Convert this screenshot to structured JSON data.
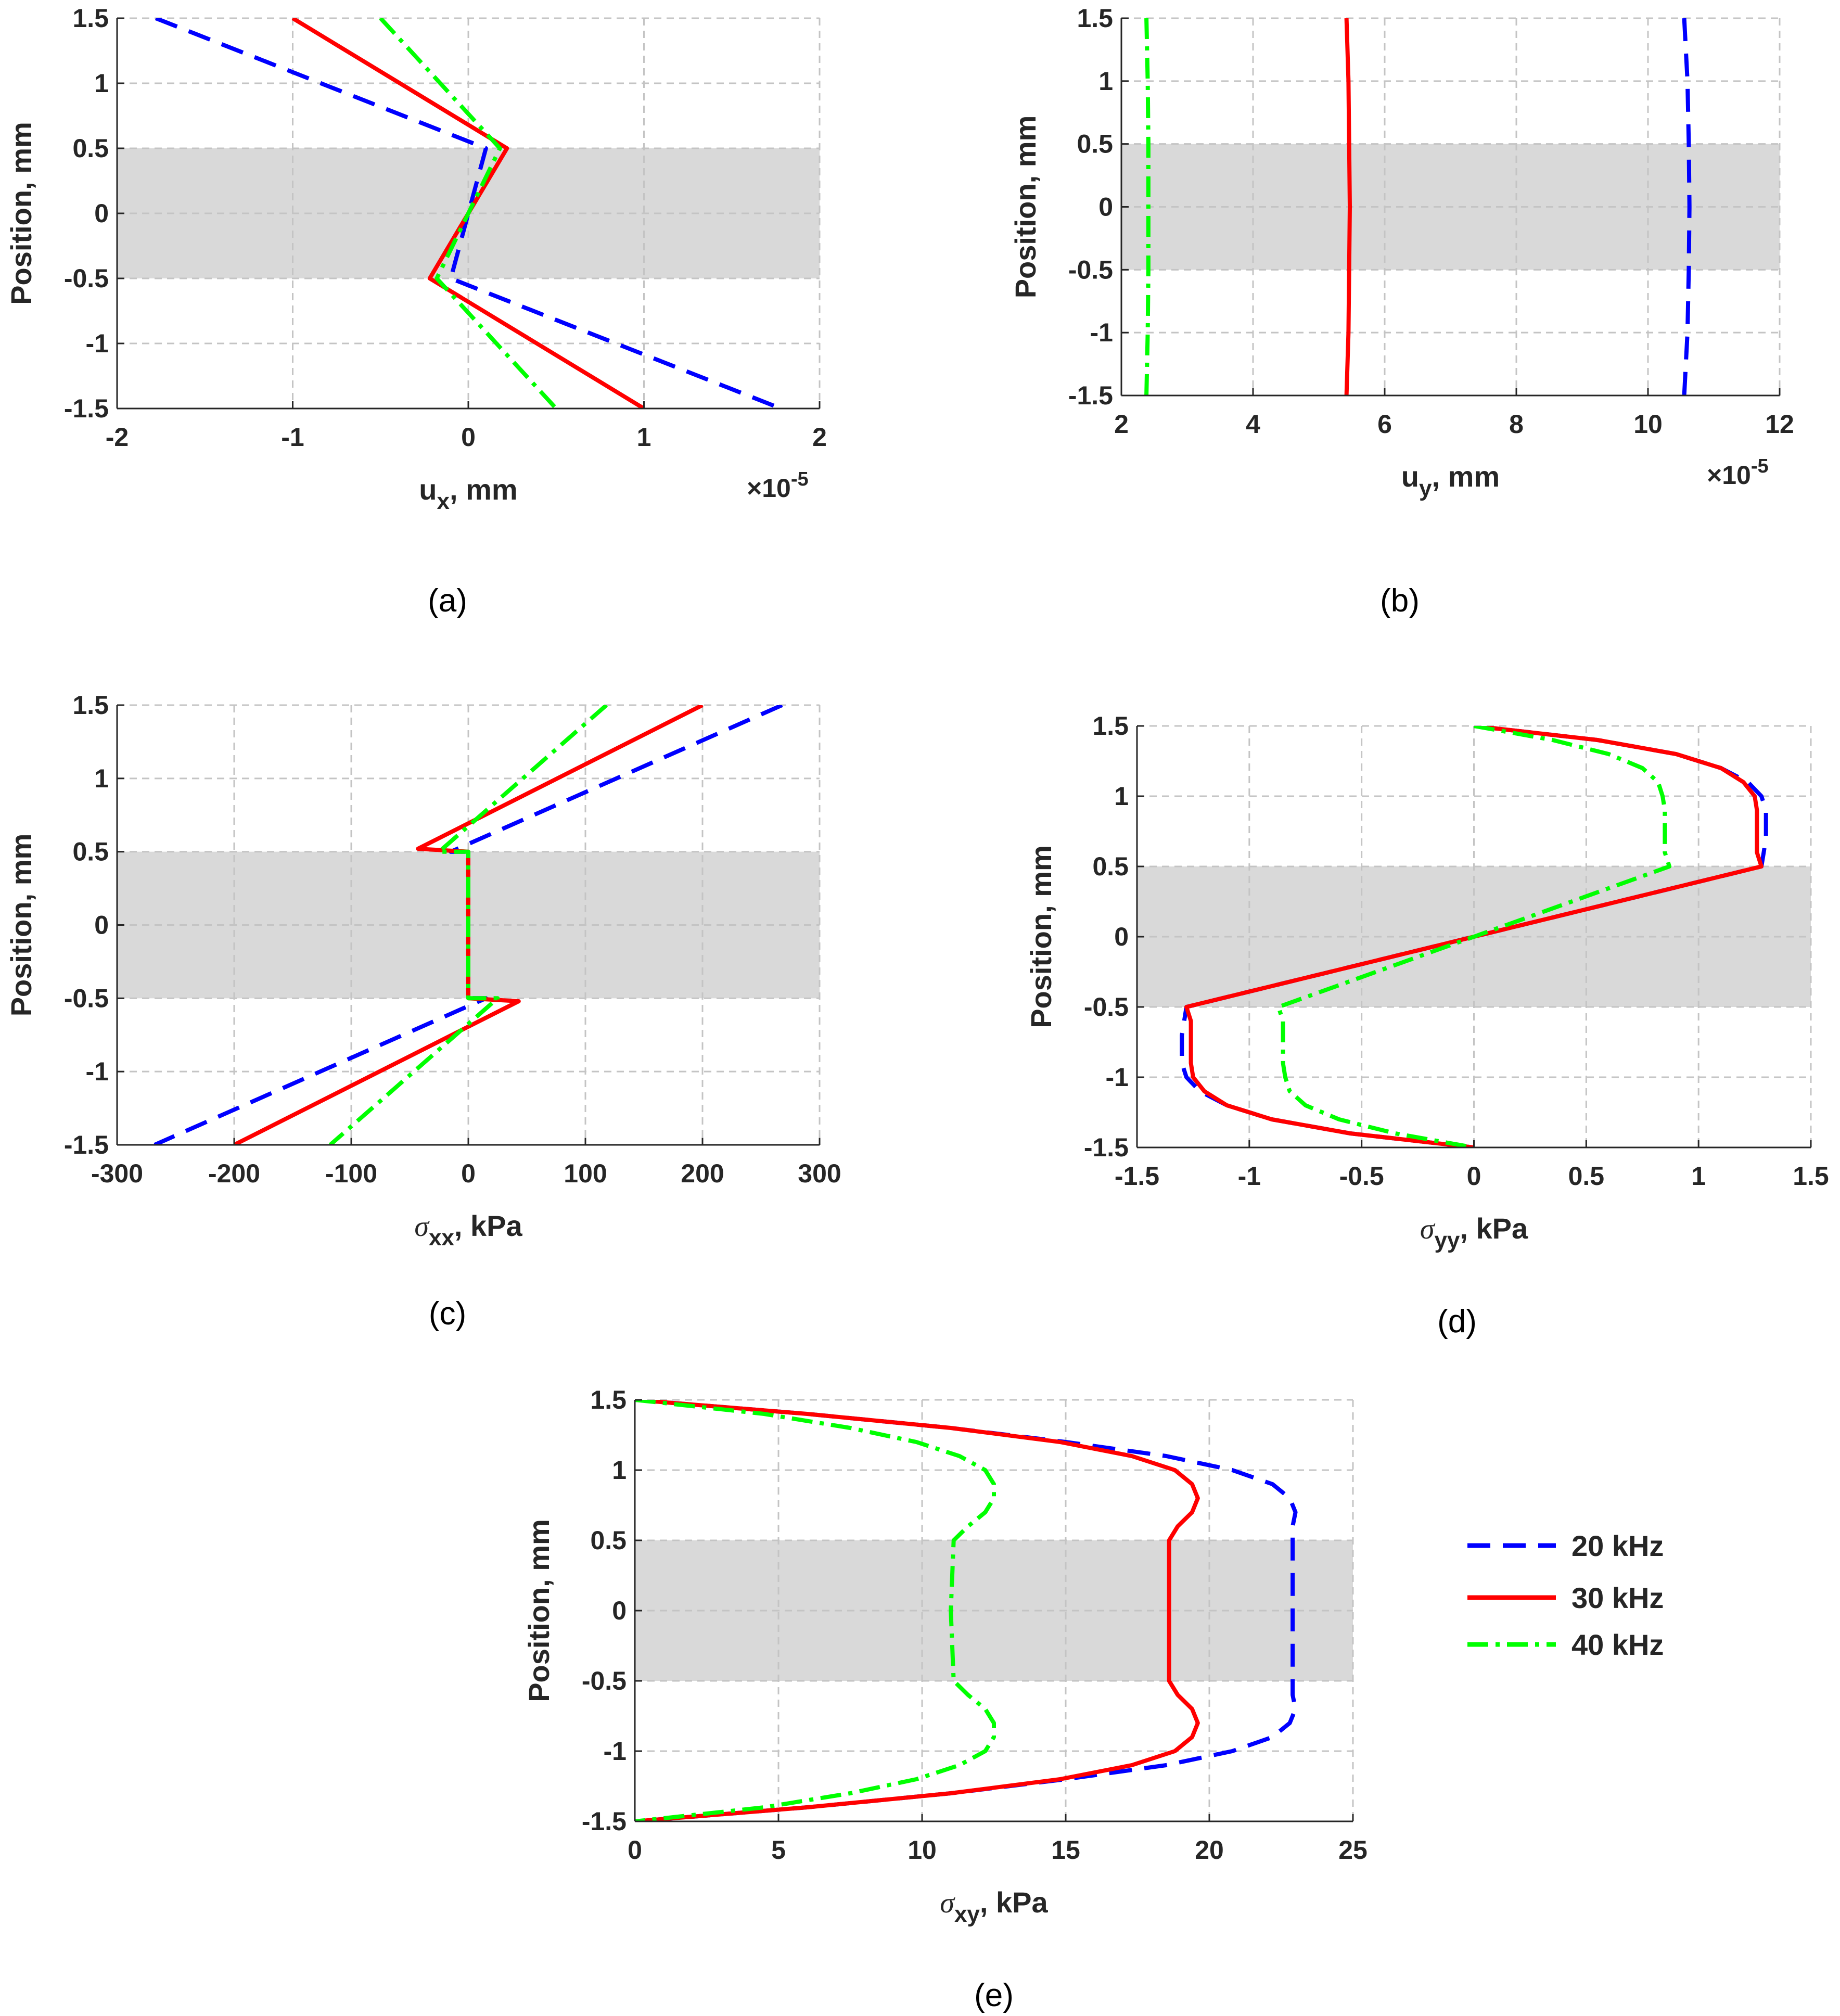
{
  "figure": {
    "legend": [
      {
        "label": "20 kHz",
        "color": "#0000ff",
        "style": "dashed"
      },
      {
        "label": "30 kHz",
        "color": "#ff0000",
        "style": "solid"
      },
      {
        "label": "40 kHz",
        "color": "#00ff00",
        "style": "dashdot"
      }
    ],
    "band_color": "#d9d9d9"
  },
  "chart_data": [
    {
      "id": "a",
      "caption": "(a)",
      "type": "line",
      "xlabel": "u",
      "xlabel_sub": "x",
      "xlabel_unit": ", mm",
      "xlabel_symbol": false,
      "ylabel": "Position, mm",
      "xlim": [
        -2,
        2
      ],
      "ylim": [
        -1.5,
        1.5
      ],
      "xticks": [
        "-2",
        "-1",
        "0",
        "1",
        "2"
      ],
      "yticks": [
        "-1.5",
        "-1",
        "-0.5",
        "0",
        "0.5",
        "1",
        "1.5"
      ],
      "exponent_base": "×10",
      "exponent_power": "-5",
      "band": [
        -0.5,
        0.5
      ],
      "series": [
        {
          "name": "20 kHz",
          "points": [
            [
              -1.78,
              1.5
            ],
            [
              0.1,
              0.5
            ],
            [
              0,
              0
            ],
            [
              -0.1,
              -0.5
            ],
            [
              1.78,
              -1.5
            ]
          ]
        },
        {
          "name": "30 kHz",
          "points": [
            [
              -1.0,
              1.5
            ],
            [
              0.22,
              0.5
            ],
            [
              0,
              0
            ],
            [
              -0.22,
              -0.5
            ],
            [
              1.0,
              -1.5
            ]
          ]
        },
        {
          "name": "40 kHz",
          "points": [
            [
              -0.5,
              1.5
            ],
            [
              0.18,
              0.5
            ],
            [
              0,
              0
            ],
            [
              -0.18,
              -0.5
            ],
            [
              0.5,
              -1.5
            ]
          ]
        }
      ]
    },
    {
      "id": "b",
      "caption": "(b)",
      "type": "line",
      "xlabel": "u",
      "xlabel_sub": "y",
      "xlabel_unit": ", mm",
      "xlabel_symbol": false,
      "ylabel": "Position, mm",
      "xlim": [
        2,
        12
      ],
      "ylim": [
        -1.5,
        1.5
      ],
      "xticks": [
        "2",
        "4",
        "6",
        "8",
        "10",
        "12"
      ],
      "yticks": [
        "-1.5",
        "-1",
        "-0.5",
        "0",
        "0.5",
        "1",
        "1.5"
      ],
      "exponent_base": "×10",
      "exponent_power": "-5",
      "band": [
        -0.5,
        0.5
      ],
      "series": [
        {
          "name": "20 kHz",
          "points": [
            [
              10.55,
              1.5
            ],
            [
              10.6,
              1.0
            ],
            [
              10.62,
              0.5
            ],
            [
              10.63,
              0
            ],
            [
              10.62,
              -0.5
            ],
            [
              10.6,
              -1.0
            ],
            [
              10.55,
              -1.5
            ]
          ]
        },
        {
          "name": "30 kHz",
          "points": [
            [
              5.42,
              1.5
            ],
            [
              5.45,
              1.0
            ],
            [
              5.46,
              0.5
            ],
            [
              5.47,
              0
            ],
            [
              5.46,
              -0.5
            ],
            [
              5.45,
              -1.0
            ],
            [
              5.42,
              -1.5
            ]
          ]
        },
        {
          "name": "40 kHz",
          "points": [
            [
              2.38,
              1.5
            ],
            [
              2.4,
              1.0
            ],
            [
              2.41,
              0.5
            ],
            [
              2.41,
              0
            ],
            [
              2.41,
              -0.5
            ],
            [
              2.4,
              -1.0
            ],
            [
              2.38,
              -1.5
            ]
          ]
        }
      ]
    },
    {
      "id": "c",
      "caption": "(c)",
      "type": "line",
      "xlabel": "σ",
      "xlabel_sub": "xx",
      "xlabel_unit": ", kPa",
      "xlabel_symbol": true,
      "ylabel": "Position, mm",
      "xlim": [
        -300,
        300
      ],
      "ylim": [
        -1.5,
        1.5
      ],
      "xticks": [
        "-300",
        "-200",
        "-100",
        "0",
        "100",
        "200",
        "300"
      ],
      "yticks": [
        "-1.5",
        "-1",
        "-0.5",
        "0",
        "0.5",
        "1",
        "1.5"
      ],
      "band": [
        -0.5,
        0.5
      ],
      "series": [
        {
          "name": "20 kHz",
          "points": [
            [
              268,
              1.5
            ],
            [
              -15,
              0.5
            ],
            [
              0,
              0.5
            ],
            [
              0,
              -0.5
            ],
            [
              15,
              -0.5
            ],
            [
              -268,
              -1.5
            ]
          ]
        },
        {
          "name": "30 kHz",
          "points": [
            [
              200,
              1.5
            ],
            [
              -43,
              0.52
            ],
            [
              0,
              0.5
            ],
            [
              0,
              -0.5
            ],
            [
              43,
              -0.52
            ],
            [
              -200,
              -1.5
            ]
          ]
        },
        {
          "name": "40 kHz",
          "points": [
            [
              118,
              1.5
            ],
            [
              -25,
              0.5
            ],
            [
              0,
              0.5
            ],
            [
              0,
              -0.5
            ],
            [
              25,
              -0.5
            ],
            [
              -118,
              -1.5
            ]
          ]
        }
      ]
    },
    {
      "id": "d",
      "caption": "(d)",
      "type": "line",
      "xlabel": "σ",
      "xlabel_sub": "yy",
      "xlabel_unit": ", kPa",
      "xlabel_symbol": true,
      "ylabel": "Position, mm",
      "xlim": [
        -1.5,
        1.5
      ],
      "ylim": [
        -1.5,
        1.5
      ],
      "xticks": [
        "-1.5",
        "-1",
        "-0.5",
        "0",
        "0.5",
        "1",
        "1.5"
      ],
      "yticks": [
        "-1.5",
        "-1",
        "-0.5",
        "0",
        "0.5",
        "1",
        "1.5"
      ],
      "band": [
        -0.5,
        0.5
      ],
      "series": [
        {
          "name": "20 kHz",
          "points": [
            [
              0,
              1.5
            ],
            [
              0.55,
              1.4
            ],
            [
              0.9,
              1.3
            ],
            [
              1.1,
              1.2
            ],
            [
              1.22,
              1.1
            ],
            [
              1.28,
              1.0
            ],
            [
              1.3,
              0.9
            ],
            [
              1.3,
              0.8
            ],
            [
              1.3,
              0.7
            ],
            [
              1.29,
              0.6
            ],
            [
              1.28,
              0.5
            ],
            [
              0,
              0
            ],
            [
              -1.28,
              -0.5
            ],
            [
              -1.29,
              -0.6
            ],
            [
              -1.3,
              -0.7
            ],
            [
              -1.3,
              -0.8
            ],
            [
              -1.3,
              -0.9
            ],
            [
              -1.28,
              -1.0
            ],
            [
              -1.22,
              -1.1
            ],
            [
              -1.1,
              -1.2
            ],
            [
              -0.9,
              -1.3
            ],
            [
              -0.55,
              -1.4
            ],
            [
              0,
              -1.5
            ]
          ]
        },
        {
          "name": "30 kHz",
          "points": [
            [
              0,
              1.5
            ],
            [
              0.55,
              1.4
            ],
            [
              0.9,
              1.3
            ],
            [
              1.1,
              1.2
            ],
            [
              1.2,
              1.1
            ],
            [
              1.25,
              1.0
            ],
            [
              1.26,
              0.9
            ],
            [
              1.26,
              0.8
            ],
            [
              1.26,
              0.7
            ],
            [
              1.26,
              0.6
            ],
            [
              1.28,
              0.5
            ],
            [
              0,
              0
            ],
            [
              -1.28,
              -0.5
            ],
            [
              -1.26,
              -0.6
            ],
            [
              -1.26,
              -0.7
            ],
            [
              -1.26,
              -0.8
            ],
            [
              -1.26,
              -0.9
            ],
            [
              -1.25,
              -1.0
            ],
            [
              -1.2,
              -1.1
            ],
            [
              -1.1,
              -1.2
            ],
            [
              -0.9,
              -1.3
            ],
            [
              -0.55,
              -1.4
            ],
            [
              0,
              -1.5
            ]
          ]
        },
        {
          "name": "40 kHz",
          "points": [
            [
              0,
              1.5
            ],
            [
              0.35,
              1.4
            ],
            [
              0.6,
              1.3
            ],
            [
              0.75,
              1.2
            ],
            [
              0.82,
              1.1
            ],
            [
              0.84,
              1.0
            ],
            [
              0.85,
              0.9
            ],
            [
              0.85,
              0.8
            ],
            [
              0.85,
              0.7
            ],
            [
              0.85,
              0.6
            ],
            [
              0.87,
              0.5
            ],
            [
              0,
              0
            ],
            [
              -0.87,
              -0.5
            ],
            [
              -0.85,
              -0.6
            ],
            [
              -0.85,
              -0.7
            ],
            [
              -0.85,
              -0.8
            ],
            [
              -0.85,
              -0.9
            ],
            [
              -0.84,
              -1.0
            ],
            [
              -0.82,
              -1.1
            ],
            [
              -0.75,
              -1.2
            ],
            [
              -0.6,
              -1.3
            ],
            [
              -0.35,
              -1.4
            ],
            [
              0,
              -1.5
            ]
          ]
        }
      ]
    },
    {
      "id": "e",
      "caption": "(e)",
      "type": "line",
      "xlabel": "σ",
      "xlabel_sub": "xy",
      "xlabel_unit": ", kPa",
      "xlabel_symbol": true,
      "ylabel": "Position, mm",
      "xlim": [
        0,
        25
      ],
      "ylim": [
        -1.5,
        1.5
      ],
      "xticks": [
        "0",
        "5",
        "10",
        "15",
        "20",
        "25"
      ],
      "yticks": [
        "-1.5",
        "-1",
        "-0.5",
        "0",
        "0.5",
        "1",
        "1.5"
      ],
      "band": [
        -0.5,
        0.5
      ],
      "series": [
        {
          "name": "20 kHz",
          "points": [
            [
              0,
              1.5
            ],
            [
              6,
              1.4
            ],
            [
              11,
              1.3
            ],
            [
              15,
              1.2
            ],
            [
              18.5,
              1.1
            ],
            [
              20.8,
              1.0
            ],
            [
              22.2,
              0.9
            ],
            [
              22.8,
              0.8
            ],
            [
              23,
              0.7
            ],
            [
              22.9,
              0.6
            ],
            [
              22.9,
              0.5
            ],
            [
              22.9,
              0
            ],
            [
              22.9,
              -0.5
            ],
            [
              22.9,
              -0.6
            ],
            [
              23,
              -0.7
            ],
            [
              22.8,
              -0.8
            ],
            [
              22.2,
              -0.9
            ],
            [
              20.8,
              -1.0
            ],
            [
              18.5,
              -1.1
            ],
            [
              15,
              -1.2
            ],
            [
              11,
              -1.3
            ],
            [
              6,
              -1.4
            ],
            [
              0,
              -1.5
            ]
          ]
        },
        {
          "name": "30 kHz",
          "points": [
            [
              0,
              1.5
            ],
            [
              6,
              1.4
            ],
            [
              11,
              1.3
            ],
            [
              14.8,
              1.2
            ],
            [
              17.3,
              1.1
            ],
            [
              18.8,
              1.0
            ],
            [
              19.4,
              0.9
            ],
            [
              19.6,
              0.8
            ],
            [
              19.4,
              0.7
            ],
            [
              18.9,
              0.6
            ],
            [
              18.6,
              0.5
            ],
            [
              18.6,
              0
            ],
            [
              18.6,
              -0.5
            ],
            [
              18.9,
              -0.6
            ],
            [
              19.4,
              -0.7
            ],
            [
              19.6,
              -0.8
            ],
            [
              19.4,
              -0.9
            ],
            [
              18.8,
              -1.0
            ],
            [
              17.3,
              -1.1
            ],
            [
              14.8,
              -1.2
            ],
            [
              11,
              -1.3
            ],
            [
              6,
              -1.4
            ],
            [
              0,
              -1.5
            ]
          ]
        },
        {
          "name": "40 kHz",
          "points": [
            [
              0,
              1.5
            ],
            [
              4.5,
              1.4
            ],
            [
              7.5,
              1.3
            ],
            [
              9.8,
              1.2
            ],
            [
              11.3,
              1.1
            ],
            [
              12.2,
              1.0
            ],
            [
              12.5,
              0.9
            ],
            [
              12.5,
              0.8
            ],
            [
              12.2,
              0.7
            ],
            [
              11.6,
              0.6
            ],
            [
              11.1,
              0.5
            ],
            [
              11.0,
              0
            ],
            [
              11.1,
              -0.5
            ],
            [
              11.6,
              -0.6
            ],
            [
              12.2,
              -0.7
            ],
            [
              12.5,
              -0.8
            ],
            [
              12.5,
              -0.9
            ],
            [
              12.2,
              -1.0
            ],
            [
              11.3,
              -1.1
            ],
            [
              9.8,
              -1.2
            ],
            [
              7.5,
              -1.3
            ],
            [
              4.5,
              -1.4
            ],
            [
              0,
              -1.5
            ]
          ]
        }
      ]
    }
  ]
}
